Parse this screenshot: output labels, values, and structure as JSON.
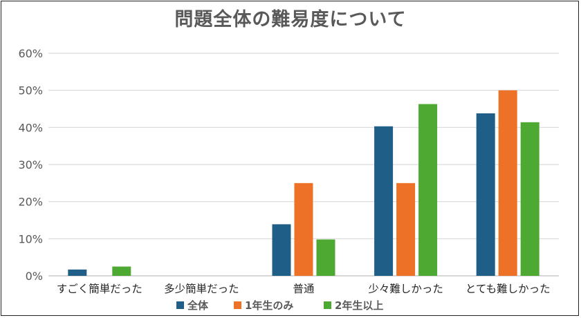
{
  "chart_data": {
    "type": "bar",
    "title": "問題全体の難易度について",
    "categories": [
      "すごく簡単だった",
      "多少簡単だった",
      "普通",
      "少々難しかった",
      "とても難しかった"
    ],
    "series": [
      {
        "name": "全体",
        "color": "#1f5f87",
        "values": [
          1.7,
          0,
          13.9,
          40.3,
          43.8
        ]
      },
      {
        "name": "1年生のみ",
        "color": "#ed7228",
        "values": [
          0,
          0,
          25,
          25,
          50
        ]
      },
      {
        "name": "2年生以上",
        "color": "#4da932",
        "values": [
          2.5,
          0,
          9.8,
          46.3,
          41.4
        ]
      }
    ],
    "ylim": [
      0,
      60
    ],
    "yticks": [
      "0%",
      "10%",
      "20%",
      "30%",
      "40%",
      "50%",
      "60%"
    ],
    "grid": true,
    "legend_position": "bottom",
    "xlabel": "",
    "ylabel": ""
  }
}
